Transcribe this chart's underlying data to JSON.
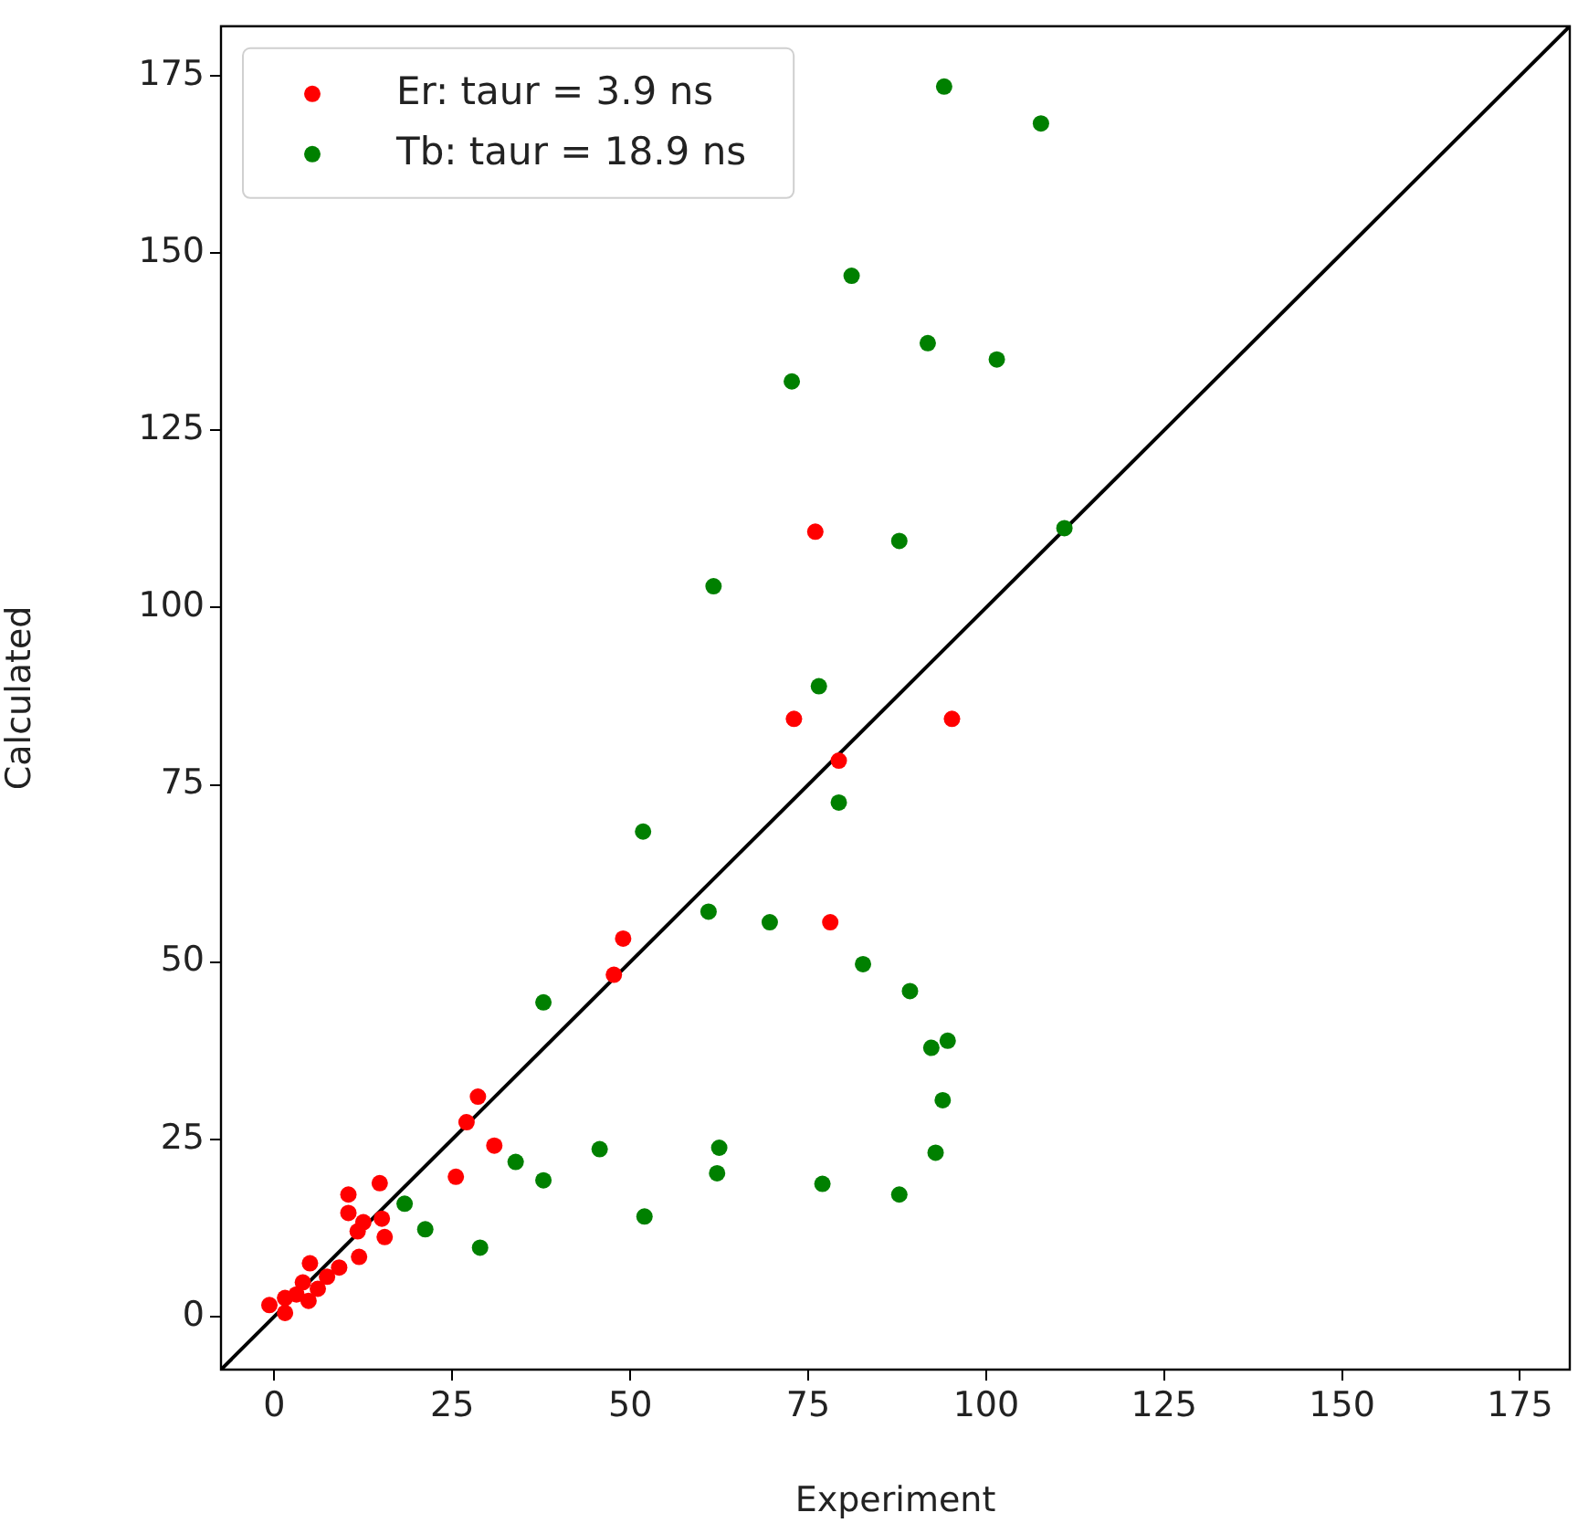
{
  "chart_data": {
    "type": "scatter",
    "xlabel": "Experiment",
    "ylabel": "Calculated",
    "xlim": [
      -7.5,
      182
    ],
    "ylim": [
      -7.5,
      182
    ],
    "xticks": [
      0,
      25,
      50,
      75,
      100,
      125,
      150,
      175
    ],
    "yticks": [
      0,
      25,
      50,
      75,
      100,
      125,
      150,
      175
    ],
    "grid": false,
    "legend": "top left",
    "marker": "circle",
    "series": [
      {
        "name": "Er: taur = 3.9 ns",
        "color": "#ff0000",
        "x": [
          76.0,
          73.0,
          95.2,
          79.3,
          78.1,
          49.0,
          47.7,
          28.6,
          27.0,
          30.9,
          25.5,
          14.8,
          10.4,
          10.4,
          12.5,
          15.1,
          15.5,
          11.7,
          11.9,
          5.0,
          9.1,
          7.4,
          6.1,
          4.0,
          3.1,
          1.5,
          -0.7,
          1.5,
          4.8
        ],
        "values": [
          110.7,
          84.3,
          84.3,
          78.4,
          55.6,
          53.3,
          48.2,
          31.0,
          27.4,
          24.1,
          19.7,
          18.8,
          17.2,
          14.6,
          13.3,
          13.8,
          11.2,
          12.0,
          8.4,
          7.5,
          6.9,
          5.6,
          3.9,
          4.8,
          3.1,
          2.6,
          1.6,
          0.5,
          2.2
        ]
      },
      {
        "name": "Tb: taur = 18.9 ns",
        "color": "#008000",
        "x": [
          94.1,
          107.7,
          81.1,
          91.8,
          101.5,
          72.7,
          111.0,
          87.8,
          61.7,
          76.5,
          79.3,
          51.8,
          61.0,
          69.6,
          37.8,
          82.7,
          89.3,
          94.6,
          92.3,
          93.9,
          92.9,
          87.8,
          77.0,
          62.5,
          62.2,
          45.7,
          33.9,
          37.8,
          52.0,
          18.3,
          21.2,
          28.9
        ],
        "values": [
          173.5,
          168.3,
          146.8,
          137.3,
          135.0,
          131.9,
          111.2,
          109.4,
          103.0,
          88.9,
          72.5,
          68.4,
          57.1,
          55.6,
          44.3,
          49.7,
          45.9,
          38.9,
          37.9,
          30.5,
          23.1,
          17.2,
          18.7,
          23.8,
          20.2,
          23.6,
          21.8,
          19.2,
          14.1,
          15.9,
          12.3,
          9.7
        ]
      },
      {
        "type": "line",
        "color": "#000000",
        "marker": "none",
        "line_style": "solid",
        "x": [
          -7.5,
          182
        ],
        "values": [
          -7.5,
          182
        ]
      }
    ]
  }
}
